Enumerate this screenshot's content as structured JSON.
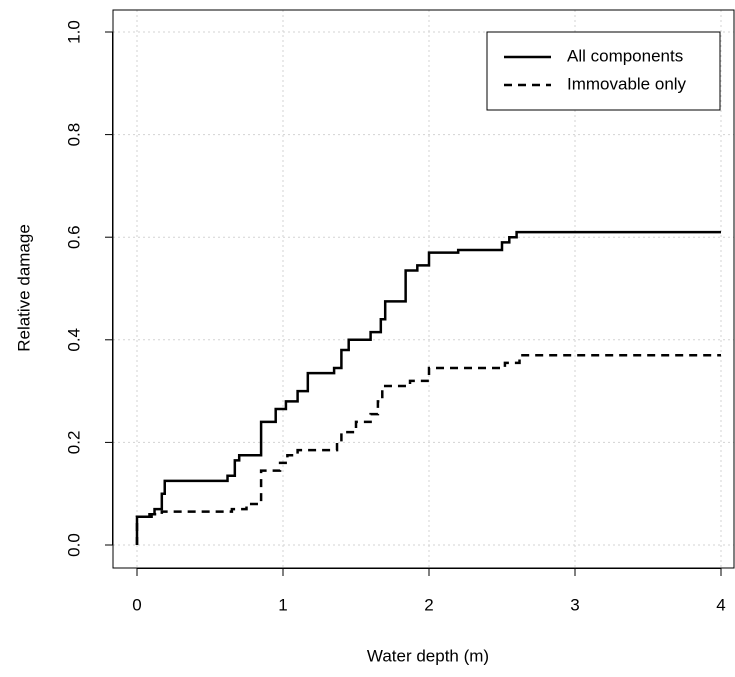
{
  "chart_data": {
    "type": "line",
    "drawstyle": "steps-post",
    "x_label": "Water depth (m)",
    "y_label": "Relative damage",
    "xlim": [
      0,
      4
    ],
    "ylim": [
      0,
      1
    ],
    "xticks": [
      0,
      1,
      2,
      3,
      4
    ],
    "yticks": [
      {
        "value": 0,
        "label": "0.0"
      },
      0.2,
      0.4,
      0.6,
      0.8,
      {
        "value": 1,
        "label": "1.0"
      }
    ],
    "grid": true,
    "legend": "top-right",
    "series": [
      {
        "name": "All components",
        "color": "#000000",
        "dash": "solid",
        "x": [
          0,
          0,
          0.1,
          0.12,
          0.17,
          0.19,
          0.62,
          0.67,
          0.7,
          0.85,
          0.95,
          1.02,
          1.1,
          1.17,
          1.35,
          1.4,
          1.45,
          1.6,
          1.67,
          1.7,
          1.84,
          1.92,
          2.0,
          2.2,
          2.5,
          2.55,
          2.6,
          4
        ],
        "values": [
          0,
          0.055,
          0.06,
          0.07,
          0.1,
          0.125,
          0.135,
          0.165,
          0.175,
          0.24,
          0.265,
          0.28,
          0.3,
          0.335,
          0.345,
          0.38,
          0.4,
          0.415,
          0.44,
          0.475,
          0.535,
          0.545,
          0.57,
          0.575,
          0.59,
          0.6,
          0.61,
          0.61
        ]
      },
      {
        "name": "Immovable only",
        "color": "#000000",
        "dash": "dashed",
        "x": [
          0,
          0,
          0.07,
          0.17,
          0.65,
          0.75,
          0.85,
          0.98,
          1.03,
          1.1,
          1.37,
          1.4,
          1.5,
          1.6,
          1.65,
          1.68,
          1.87,
          2.0,
          2.52,
          2.62,
          4
        ],
        "values": [
          0,
          0.055,
          0.06,
          0.065,
          0.07,
          0.08,
          0.145,
          0.16,
          0.175,
          0.185,
          0.2,
          0.22,
          0.24,
          0.255,
          0.28,
          0.31,
          0.32,
          0.345,
          0.355,
          0.37,
          0.37
        ]
      }
    ]
  }
}
